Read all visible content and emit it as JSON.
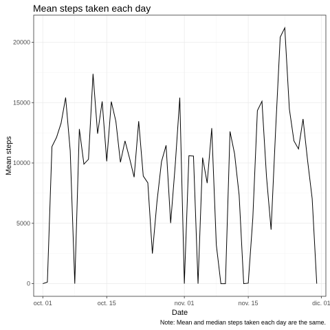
{
  "chart_data": {
    "type": "line",
    "title": "Mean steps taken each day",
    "xlabel": "Date",
    "ylabel": "Mean steps",
    "caption": "Note: Mean and median steps taken each day are the same.",
    "xlim": [
      "2012-09-29",
      "2012-12-02"
    ],
    "ylim": [
      -1050,
      22250
    ],
    "x_ticks": [
      {
        "date": "2012-10-01",
        "label": "oct. 01"
      },
      {
        "date": "2012-10-15",
        "label": "oct. 15"
      },
      {
        "date": "2012-11-01",
        "label": "nov. 01"
      },
      {
        "date": "2012-11-15",
        "label": "nov. 15"
      },
      {
        "date": "2012-12-01",
        "label": "dic. 01"
      }
    ],
    "y_ticks": [
      0,
      5000,
      10000,
      15000,
      20000
    ],
    "grid": true,
    "series": [
      {
        "x": [
          "2012-10-01",
          "2012-10-02",
          "2012-10-03",
          "2012-10-04",
          "2012-10-05",
          "2012-10-06",
          "2012-10-07",
          "2012-10-08",
          "2012-10-09",
          "2012-10-10",
          "2012-10-11",
          "2012-10-12",
          "2012-10-13",
          "2012-10-14",
          "2012-10-15",
          "2012-10-16",
          "2012-10-17",
          "2012-10-18",
          "2012-10-19",
          "2012-10-20",
          "2012-10-21",
          "2012-10-22",
          "2012-10-23",
          "2012-10-24",
          "2012-10-25",
          "2012-10-26",
          "2012-10-27",
          "2012-10-28",
          "2012-10-29",
          "2012-10-30",
          "2012-10-31",
          "2012-11-01",
          "2012-11-02",
          "2012-11-03",
          "2012-11-04",
          "2012-11-05",
          "2012-11-06",
          "2012-11-07",
          "2012-11-08",
          "2012-11-09",
          "2012-11-10",
          "2012-11-11",
          "2012-11-12",
          "2012-11-13",
          "2012-11-14",
          "2012-11-15",
          "2012-11-16",
          "2012-11-17",
          "2012-11-18",
          "2012-11-19",
          "2012-11-20",
          "2012-11-21",
          "2012-11-22",
          "2012-11-23",
          "2012-11-24",
          "2012-11-25",
          "2012-11-26",
          "2012-11-27",
          "2012-11-28",
          "2012-11-29",
          "2012-11-30"
        ],
        "y": [
          0,
          126,
          11352,
          12116,
          13294,
          15420,
          11015,
          0,
          12811,
          9900,
          10304,
          17382,
          12426,
          15098,
          10139,
          15084,
          13452,
          10056,
          11829,
          10395,
          8821,
          13460,
          8918,
          8355,
          2492,
          6778,
          10119,
          11458,
          5018,
          9819,
          15414,
          0,
          10600,
          10571,
          0,
          10439,
          8334,
          12883,
          3219,
          0,
          0,
          12608,
          10765,
          7336,
          0,
          41,
          5441,
          14339,
          15110,
          8841,
          4472,
          12787,
          20427,
          21194,
          14478,
          11834,
          11162,
          13646,
          10183,
          7047,
          0
        ]
      }
    ]
  }
}
